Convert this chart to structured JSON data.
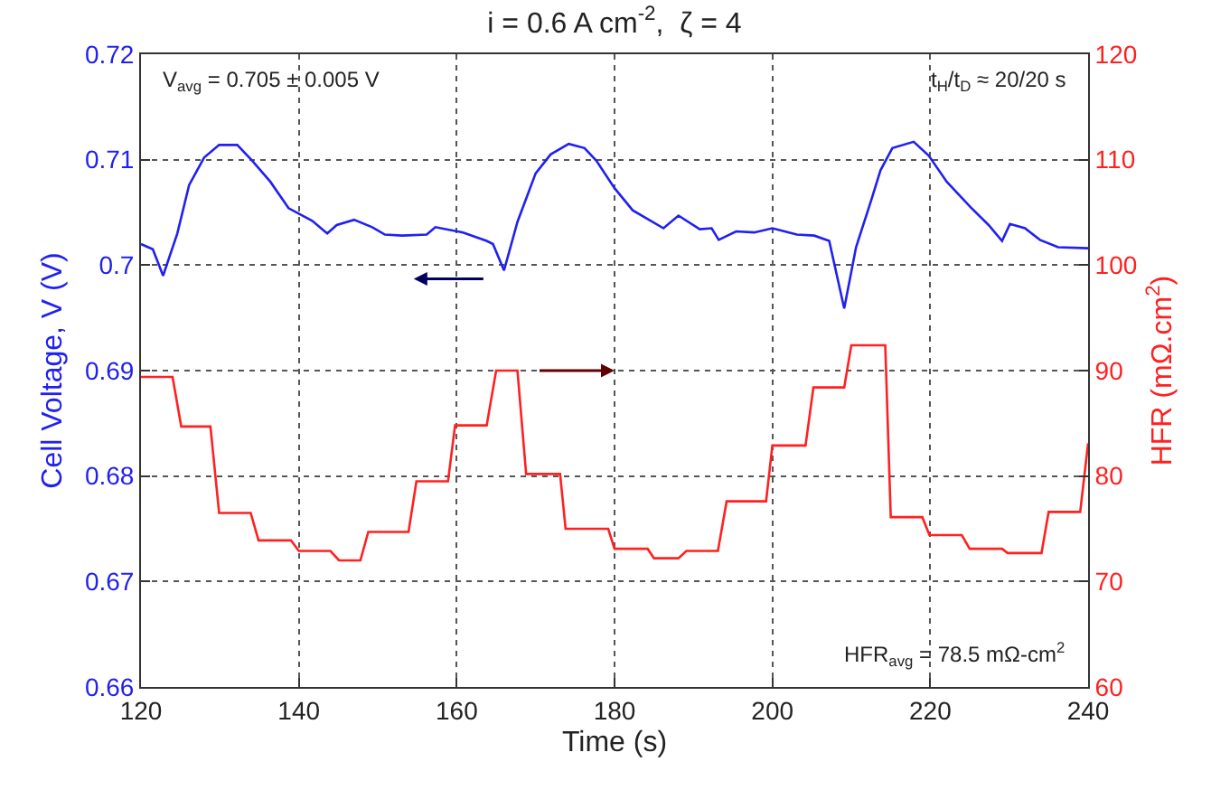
{
  "chart_data": {
    "type": "line",
    "title": "i = 0.6 A cm$^{-2}$,  ζ = 4",
    "xlabel": "Time (s)",
    "ylabel": "Cell Voltage, V (V)",
    "y2label": "HFR (mΩ.cm$^{2}$)",
    "annotations": [
      "V$_{avg}$ = 0.705 ± 0.005 V",
      "t$_{H}$/t$_{D}$ ≈ 20/20 s",
      "HFR$_{avg}$ = 78.5 mΩ-cm$^{2}$"
    ],
    "series": [
      {
        "color": "#2020f0",
        "x": [
          120,
          121.5,
          122.8,
          124.6,
          126.1,
          128,
          129.9,
          132.2,
          134.1,
          136.4,
          138.7,
          141.7,
          143.6,
          144.8,
          147,
          149.3,
          150.9,
          153.1,
          156.2,
          157.3,
          160.8,
          163.8,
          164.6,
          166,
          167.7,
          170,
          171.9,
          174.2,
          176.2,
          177.7,
          180,
          182.3,
          184.6,
          186.2,
          188.1,
          190.8,
          192.3,
          193.2,
          195.4,
          197.7,
          200,
          203.1,
          205.3,
          207.2,
          209.1,
          210.6,
          212.5,
          213.7,
          215.2,
          217.9,
          219.8,
          222.1,
          225.1,
          227.4,
          229.1,
          230.1,
          232,
          233.9,
          236.2,
          240
        ],
        "values": [
          0.702,
          0.7015,
          0.699,
          0.703,
          0.7076,
          0.7102,
          0.7114,
          0.7114,
          0.7099,
          0.7079,
          0.7054,
          0.7042,
          0.703,
          0.7038,
          0.7043,
          0.7036,
          0.7029,
          0.7028,
          0.7029,
          0.7036,
          0.7031,
          0.7023,
          0.702,
          0.6995,
          0.7041,
          0.7087,
          0.7105,
          0.7115,
          0.7111,
          0.7099,
          0.7073,
          0.7052,
          0.7042,
          0.7035,
          0.7047,
          0.7034,
          0.7035,
          0.7024,
          0.7032,
          0.7031,
          0.7035,
          0.7029,
          0.7028,
          0.7023,
          0.6959,
          0.7017,
          0.7061,
          0.709,
          0.7111,
          0.7117,
          0.7104,
          0.7079,
          0.7055,
          0.7038,
          0.7023,
          0.7039,
          0.7035,
          0.7024,
          0.7017,
          0.7016
        ]
      },
      {
        "color": "#ff2020",
        "axis": "y2",
        "x": [
          120,
          124,
          125.1,
          128.8,
          129.9,
          133.9,
          134.9,
          139,
          140,
          144,
          145.1,
          147.8,
          148.8,
          153.9,
          154.9,
          158.9,
          159.8,
          163.8,
          165,
          167.7,
          168.8,
          173.1,
          173.8,
          179.2,
          180,
          184.2,
          185,
          188.1,
          189.1,
          193.1,
          194.2,
          199.2,
          200,
          204.2,
          205.2,
          209.1,
          210,
          214.3,
          215,
          219,
          219.9,
          224,
          225,
          229.1,
          229.8,
          234.1,
          235,
          239,
          240
        ],
        "values": [
          89.4,
          89.4,
          84.7,
          84.7,
          76.5,
          76.5,
          73.9,
          73.9,
          72.9,
          72.9,
          72.0,
          72.0,
          74.7,
          74.7,
          79.5,
          79.5,
          84.8,
          84.8,
          90,
          90,
          80.2,
          80.2,
          75,
          75,
          73.1,
          73.1,
          72.2,
          72.2,
          72.9,
          72.9,
          77.6,
          77.6,
          82.9,
          82.9,
          88.4,
          88.4,
          92.4,
          92.4,
          76.1,
          76.1,
          74.4,
          74.4,
          73.1,
          73.1,
          72.7,
          72.7,
          76.6,
          76.6,
          83.1
        ]
      }
    ],
    "xlim": [
      120,
      240
    ],
    "xticks": [
      120,
      140,
      160,
      180,
      200,
      220,
      240
    ],
    "ylim": [
      0.66,
      0.72
    ],
    "yticks": [
      0.66,
      0.67,
      0.68,
      0.69,
      0.7,
      0.71,
      0.72
    ],
    "y2lim": [
      60,
      120
    ],
    "y2ticks": [
      60,
      70,
      80,
      90,
      100,
      110,
      120
    ],
    "grid": true,
    "marker": "none",
    "line_style": "solid"
  }
}
